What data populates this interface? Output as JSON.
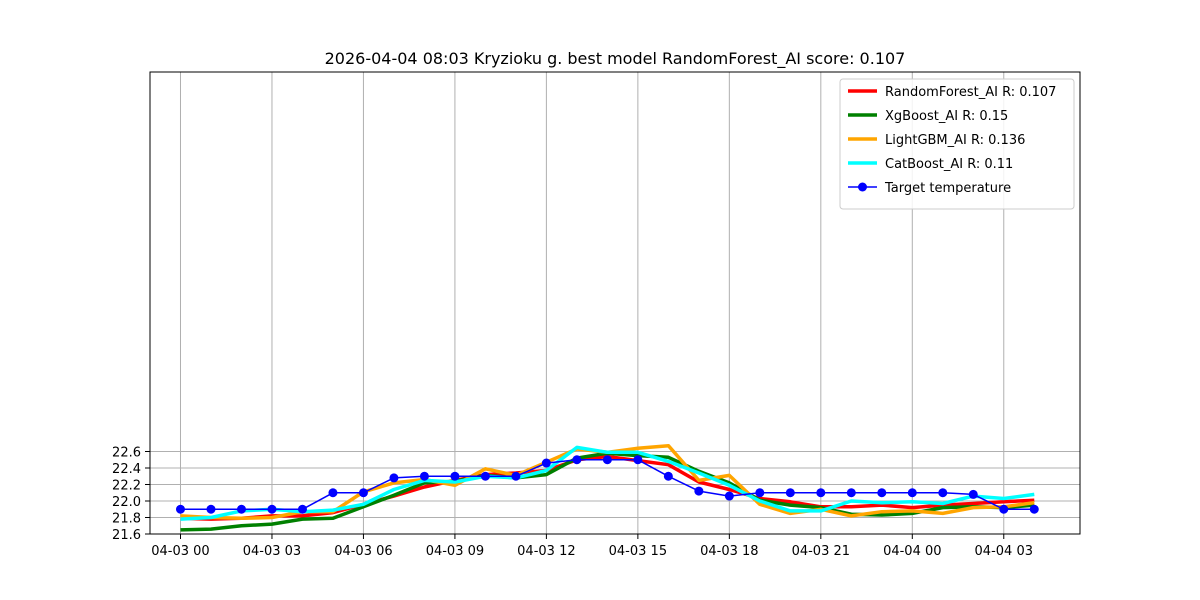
{
  "chart_data": {
    "type": "line",
    "title": "2026-04-04 08:03 Kryzioku g. best model RandomForest_AI score: 0.107",
    "xlabel": "",
    "ylabel": "",
    "ylim": [
      21.6,
      27.2
    ],
    "xlim": [
      "2026-04-02 23:00",
      "2026-04-04 05:30"
    ],
    "grid": true,
    "legend_position": "top-right",
    "x_ticks": [
      {
        "time": "2026-04-03 00:00",
        "label": "04-03 00"
      },
      {
        "time": "2026-04-03 03:00",
        "label": "04-03 03"
      },
      {
        "time": "2026-04-03 06:00",
        "label": "04-03 06"
      },
      {
        "time": "2026-04-03 09:00",
        "label": "04-03 09"
      },
      {
        "time": "2026-04-03 12:00",
        "label": "04-03 12"
      },
      {
        "time": "2026-04-03 15:00",
        "label": "04-03 15"
      },
      {
        "time": "2026-04-03 18:00",
        "label": "04-03 18"
      },
      {
        "time": "2026-04-03 21:00",
        "label": "04-03 21"
      },
      {
        "time": "2026-04-04 00:00",
        "label": "04-04 00"
      },
      {
        "time": "2026-04-04 03:00",
        "label": "04-04 03"
      }
    ],
    "y_ticks": [
      {
        "value": 21.6,
        "label": "21.6"
      },
      {
        "value": 21.8,
        "label": "21.8"
      },
      {
        "value": 22.0,
        "label": "22.0"
      },
      {
        "value": 22.2,
        "label": "22.2"
      },
      {
        "value": 22.4,
        "label": "22.4"
      },
      {
        "value": 22.6,
        "label": "22.6"
      }
    ],
    "x": [
      "2026-04-03 00:00",
      "2026-04-03 01:00",
      "2026-04-03 02:00",
      "2026-04-03 03:00",
      "2026-04-03 04:00",
      "2026-04-03 05:00",
      "2026-04-03 06:00",
      "2026-04-03 07:00",
      "2026-04-03 08:00",
      "2026-04-03 09:00",
      "2026-04-03 10:00",
      "2026-04-03 11:00",
      "2026-04-03 12:00",
      "2026-04-03 13:00",
      "2026-04-03 14:00",
      "2026-04-03 15:00",
      "2026-04-03 16:00",
      "2026-04-03 17:00",
      "2026-04-03 18:00",
      "2026-04-03 19:00",
      "2026-04-03 20:00",
      "2026-04-03 21:00",
      "2026-04-03 22:00",
      "2026-04-03 23:00",
      "2026-04-04 00:00",
      "2026-04-04 01:00",
      "2026-04-04 02:00",
      "2026-04-04 03:00",
      "2026-04-04 04:00"
    ],
    "series": [
      {
        "name": "RandomForest_AI R: 0.107",
        "color": "#ff0000",
        "line_width": "thick",
        "markers": false,
        "values": [
          21.79,
          21.78,
          21.79,
          21.82,
          21.82,
          21.86,
          21.96,
          22.06,
          22.17,
          22.25,
          22.32,
          22.34,
          22.37,
          22.5,
          22.54,
          22.49,
          22.44,
          22.23,
          22.14,
          22.03,
          21.99,
          21.93,
          21.93,
          21.95,
          21.92,
          21.95,
          21.97,
          21.99,
          22.01
        ]
      },
      {
        "name": "XgBoost_AI R: 0.15",
        "color": "#008000",
        "line_width": "thick",
        "markers": false,
        "values": [
          21.65,
          21.66,
          21.7,
          21.72,
          21.78,
          21.79,
          21.93,
          22.07,
          22.22,
          22.24,
          22.31,
          22.28,
          22.32,
          22.52,
          22.58,
          22.55,
          22.53,
          22.36,
          22.22,
          22.01,
          21.95,
          21.92,
          21.84,
          21.83,
          21.85,
          21.92,
          21.93,
          21.92,
          21.95
        ]
      },
      {
        "name": "LightGBM_AI R: 0.136",
        "color": "#ffa500",
        "line_width": "thick",
        "markers": false,
        "values": [
          21.82,
          21.8,
          21.79,
          21.8,
          21.87,
          21.87,
          22.11,
          22.22,
          22.26,
          22.19,
          22.39,
          22.31,
          22.47,
          22.63,
          22.59,
          22.64,
          22.67,
          22.25,
          22.31,
          21.96,
          21.85,
          21.9,
          21.82,
          21.87,
          21.88,
          21.85,
          21.92,
          21.93,
          21.98
        ]
      },
      {
        "name": "CatBoost_AI R: 0.11",
        "color": "#00ffff",
        "line_width": "thick",
        "markers": false,
        "values": [
          21.78,
          21.8,
          21.88,
          21.9,
          21.87,
          21.89,
          21.96,
          22.14,
          22.25,
          22.23,
          22.3,
          22.28,
          22.37,
          22.65,
          22.59,
          22.59,
          22.48,
          22.34,
          22.19,
          22.0,
          21.88,
          21.88,
          22.0,
          21.98,
          21.99,
          21.97,
          22.06,
          22.03,
          22.08
        ]
      },
      {
        "name": "Target temperature",
        "color": "#0000ff",
        "line_width": "thin",
        "markers": true,
        "values": [
          21.9,
          21.9,
          21.9,
          21.9,
          21.9,
          22.1,
          22.1,
          22.28,
          22.3,
          22.3,
          22.3,
          22.3,
          22.46,
          22.5,
          22.5,
          22.5,
          22.3,
          22.12,
          22.06,
          22.1,
          22.1,
          22.1,
          22.1,
          22.1,
          22.1,
          22.1,
          22.08,
          21.9,
          21.9
        ]
      }
    ]
  }
}
